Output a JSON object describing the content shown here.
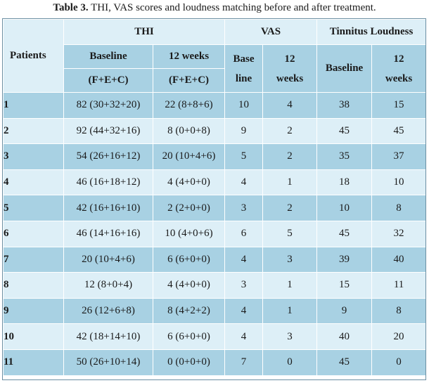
{
  "caption": {
    "label": "Table 3.",
    "text": " THI, VAS scores and loudness matching before and after treatment."
  },
  "header": {
    "patients": "Patients",
    "groups": {
      "thi": "THI",
      "vas": "VAS",
      "loudness": "Tinnitus Loudness"
    },
    "thi_baseline": "Baseline",
    "thi_baseline_sub": "(F+E+C)",
    "thi_12weeks": "12 weeks",
    "thi_12weeks_sub": "(F+E+C)",
    "vas_baseline_1": "Base",
    "vas_baseline_2": "line",
    "vas_12weeks_1": "12",
    "vas_12weeks_2": "weeks",
    "loud_baseline": "Baseline",
    "loud_12weeks_1": "12",
    "loud_12weeks_2": "weeks"
  },
  "rows": [
    [
      "1",
      "82 (30+32+20)",
      "22 (8+8+6)",
      "10",
      "4",
      "38",
      "15"
    ],
    [
      "2",
      "92 (44+32+16)",
      "8 (0+0+8)",
      "9",
      "2",
      "45",
      "45"
    ],
    [
      "3",
      "54 (26+16+12)",
      "20 (10+4+6)",
      "5",
      "2",
      "35",
      "37"
    ],
    [
      "4",
      "46 (16+18+12)",
      "4 (4+0+0)",
      "4",
      "1",
      "18",
      "10"
    ],
    [
      "5",
      "42 (16+16+10)",
      "2 (2+0+0)",
      "3",
      "2",
      "10",
      "8"
    ],
    [
      "6",
      "46 (14+16+16)",
      "10 (4+0+6)",
      "6",
      "5",
      "45",
      "32"
    ],
    [
      "7",
      "20 (10+4+6)",
      "6 (6+0+0)",
      "4",
      "3",
      "39",
      "40"
    ],
    [
      "8",
      "12 (8+0+4)",
      "4 (4+0+0)",
      "3",
      "1",
      "15",
      "11"
    ],
    [
      "9",
      "26 (12+6+8)",
      "8 (4+2+2)",
      "4",
      "1",
      "9",
      "8"
    ],
    [
      "10",
      "42 (18+14+10)",
      "6 (6+0+0)",
      "4",
      "3",
      "40",
      "20"
    ],
    [
      "11",
      "50 (26+10+14)",
      "0 (0+0+0)",
      "7",
      "0",
      "45",
      "0"
    ]
  ]
}
